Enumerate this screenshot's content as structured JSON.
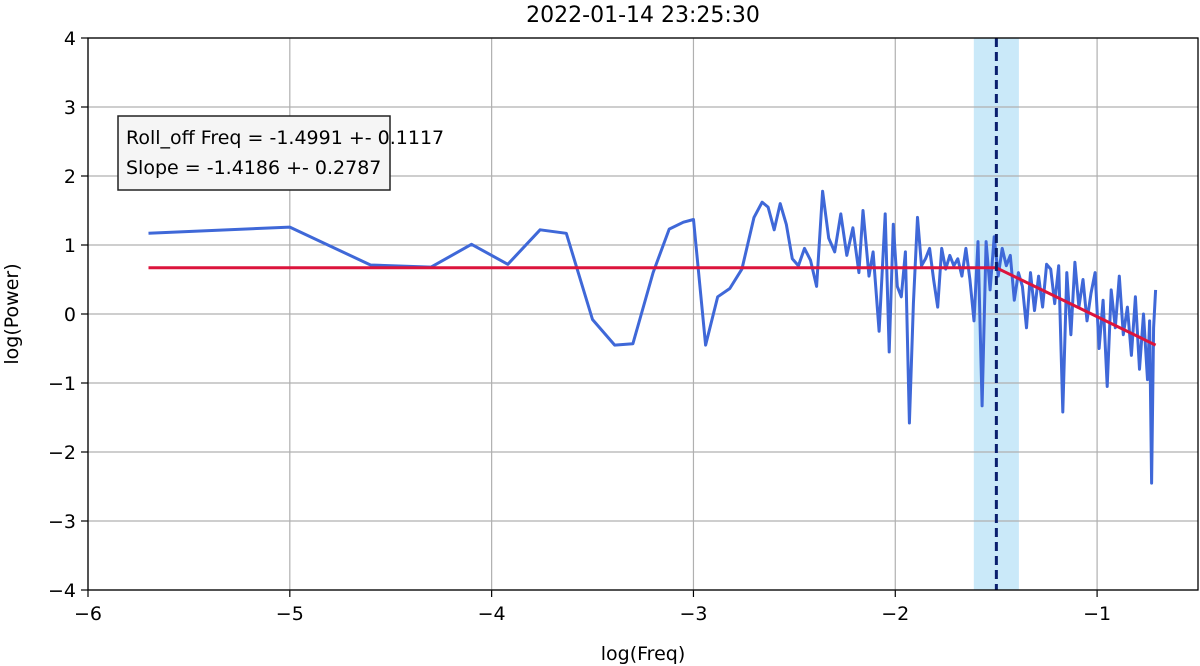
{
  "chart_data": {
    "type": "line",
    "title": "2022-01-14 23:25:30",
    "xlabel": "log(Freq)",
    "ylabel": "log(Power)",
    "xlim": [
      -6,
      -0.5
    ],
    "ylim": [
      -4,
      4
    ],
    "xticks": [
      {
        "value": -6,
        "label": "−6"
      },
      {
        "value": -5,
        "label": "−5"
      },
      {
        "value": -4,
        "label": "−4"
      },
      {
        "value": -3,
        "label": "−3"
      },
      {
        "value": -2,
        "label": "−2"
      },
      {
        "value": -1,
        "label": "−1"
      }
    ],
    "yticks": [
      {
        "value": -4,
        "label": "−4"
      },
      {
        "value": -3,
        "label": "−3"
      },
      {
        "value": -2,
        "label": "−2"
      },
      {
        "value": -1,
        "label": "−1"
      },
      0,
      1,
      2,
      3,
      4
    ],
    "grid": true,
    "annotations": [
      "Roll_off Freq = -1.4991 +- 0.1117",
      "Slope = -1.4186 +- 0.2787"
    ],
    "roll_off": -1.4991,
    "roll_off_err": 0.1117,
    "band_color": "#bde4f7",
    "roll_off_color": "#0a1f6e",
    "series": [
      {
        "color": "#3f68d8",
        "x": [
          -5.7,
          -5.0,
          -4.6,
          -4.3,
          -4.1,
          -3.92,
          -3.76,
          -3.63,
          -3.5,
          -3.39,
          -3.3,
          -3.2,
          -3.12,
          -3.05,
          -3.0,
          -2.94,
          -2.88,
          -2.82,
          -2.76,
          -2.7,
          -2.66,
          -2.63,
          -2.6,
          -2.57,
          -2.54,
          -2.51,
          -2.48,
          -2.45,
          -2.42,
          -2.39,
          -2.36,
          -2.33,
          -2.3,
          -2.27,
          -2.24,
          -2.21,
          -2.18,
          -2.16,
          -2.13,
          -2.11,
          -2.08,
          -2.05,
          -2.03,
          -2.01,
          -1.99,
          -1.97,
          -1.95,
          -1.93,
          -1.91,
          -1.89,
          -1.87,
          -1.85,
          -1.83,
          -1.81,
          -1.79,
          -1.77,
          -1.75,
          -1.73,
          -1.71,
          -1.69,
          -1.67,
          -1.65,
          -1.63,
          -1.61,
          -1.59,
          -1.57,
          -1.55,
          -1.53,
          -1.51,
          -1.49,
          -1.47,
          -1.45,
          -1.43,
          -1.41,
          -1.39,
          -1.37,
          -1.35,
          -1.33,
          -1.31,
          -1.29,
          -1.27,
          -1.25,
          -1.23,
          -1.21,
          -1.19,
          -1.17,
          -1.15,
          -1.13,
          -1.11,
          -1.09,
          -1.07,
          -1.05,
          -1.03,
          -1.01,
          -0.99,
          -0.97,
          -0.95,
          -0.93,
          -0.91,
          -0.89,
          -0.87,
          -0.85,
          -0.83,
          -0.81,
          -0.79,
          -0.77,
          -0.75,
          -0.74,
          -0.73,
          -0.72,
          -0.71
        ],
        "values": [
          1.17,
          1.26,
          0.71,
          0.68,
          1.01,
          0.72,
          1.22,
          1.17,
          -0.08,
          -0.45,
          -0.43,
          0.6,
          1.23,
          1.33,
          1.37,
          -0.45,
          0.25,
          0.37,
          0.65,
          1.4,
          1.62,
          1.55,
          1.22,
          1.6,
          1.3,
          0.8,
          0.7,
          0.95,
          0.78,
          0.4,
          1.78,
          1.1,
          0.9,
          1.45,
          0.85,
          1.25,
          0.6,
          1.5,
          0.55,
          0.9,
          -0.25,
          1.45,
          -0.55,
          1.3,
          0.4,
          0.25,
          0.9,
          -1.58,
          0.15,
          1.4,
          0.7,
          0.8,
          0.95,
          0.5,
          0.1,
          0.95,
          0.65,
          0.85,
          0.7,
          0.8,
          0.55,
          0.95,
          0.5,
          -0.1,
          1.05,
          -1.33,
          1.05,
          0.35,
          1.12,
          0.55,
          0.95,
          0.7,
          0.85,
          0.2,
          0.6,
          0.4,
          -0.2,
          0.6,
          0.05,
          0.55,
          0.1,
          0.72,
          0.65,
          0.15,
          0.7,
          -1.42,
          0.6,
          -0.3,
          0.75,
          0.1,
          0.5,
          -0.1,
          0.3,
          0.6,
          -0.5,
          0.2,
          -1.05,
          0.35,
          -0.2,
          0.55,
          -0.3,
          0.1,
          -0.6,
          0.25,
          -0.8,
          0.0,
          -0.95,
          -0.1,
          -2.45,
          -0.2,
          0.35
        ]
      },
      {
        "color": "#dc143c",
        "x": [
          -5.7,
          -1.4991,
          -0.71
        ],
        "values": [
          0.67,
          0.67,
          -0.45
        ]
      }
    ]
  }
}
